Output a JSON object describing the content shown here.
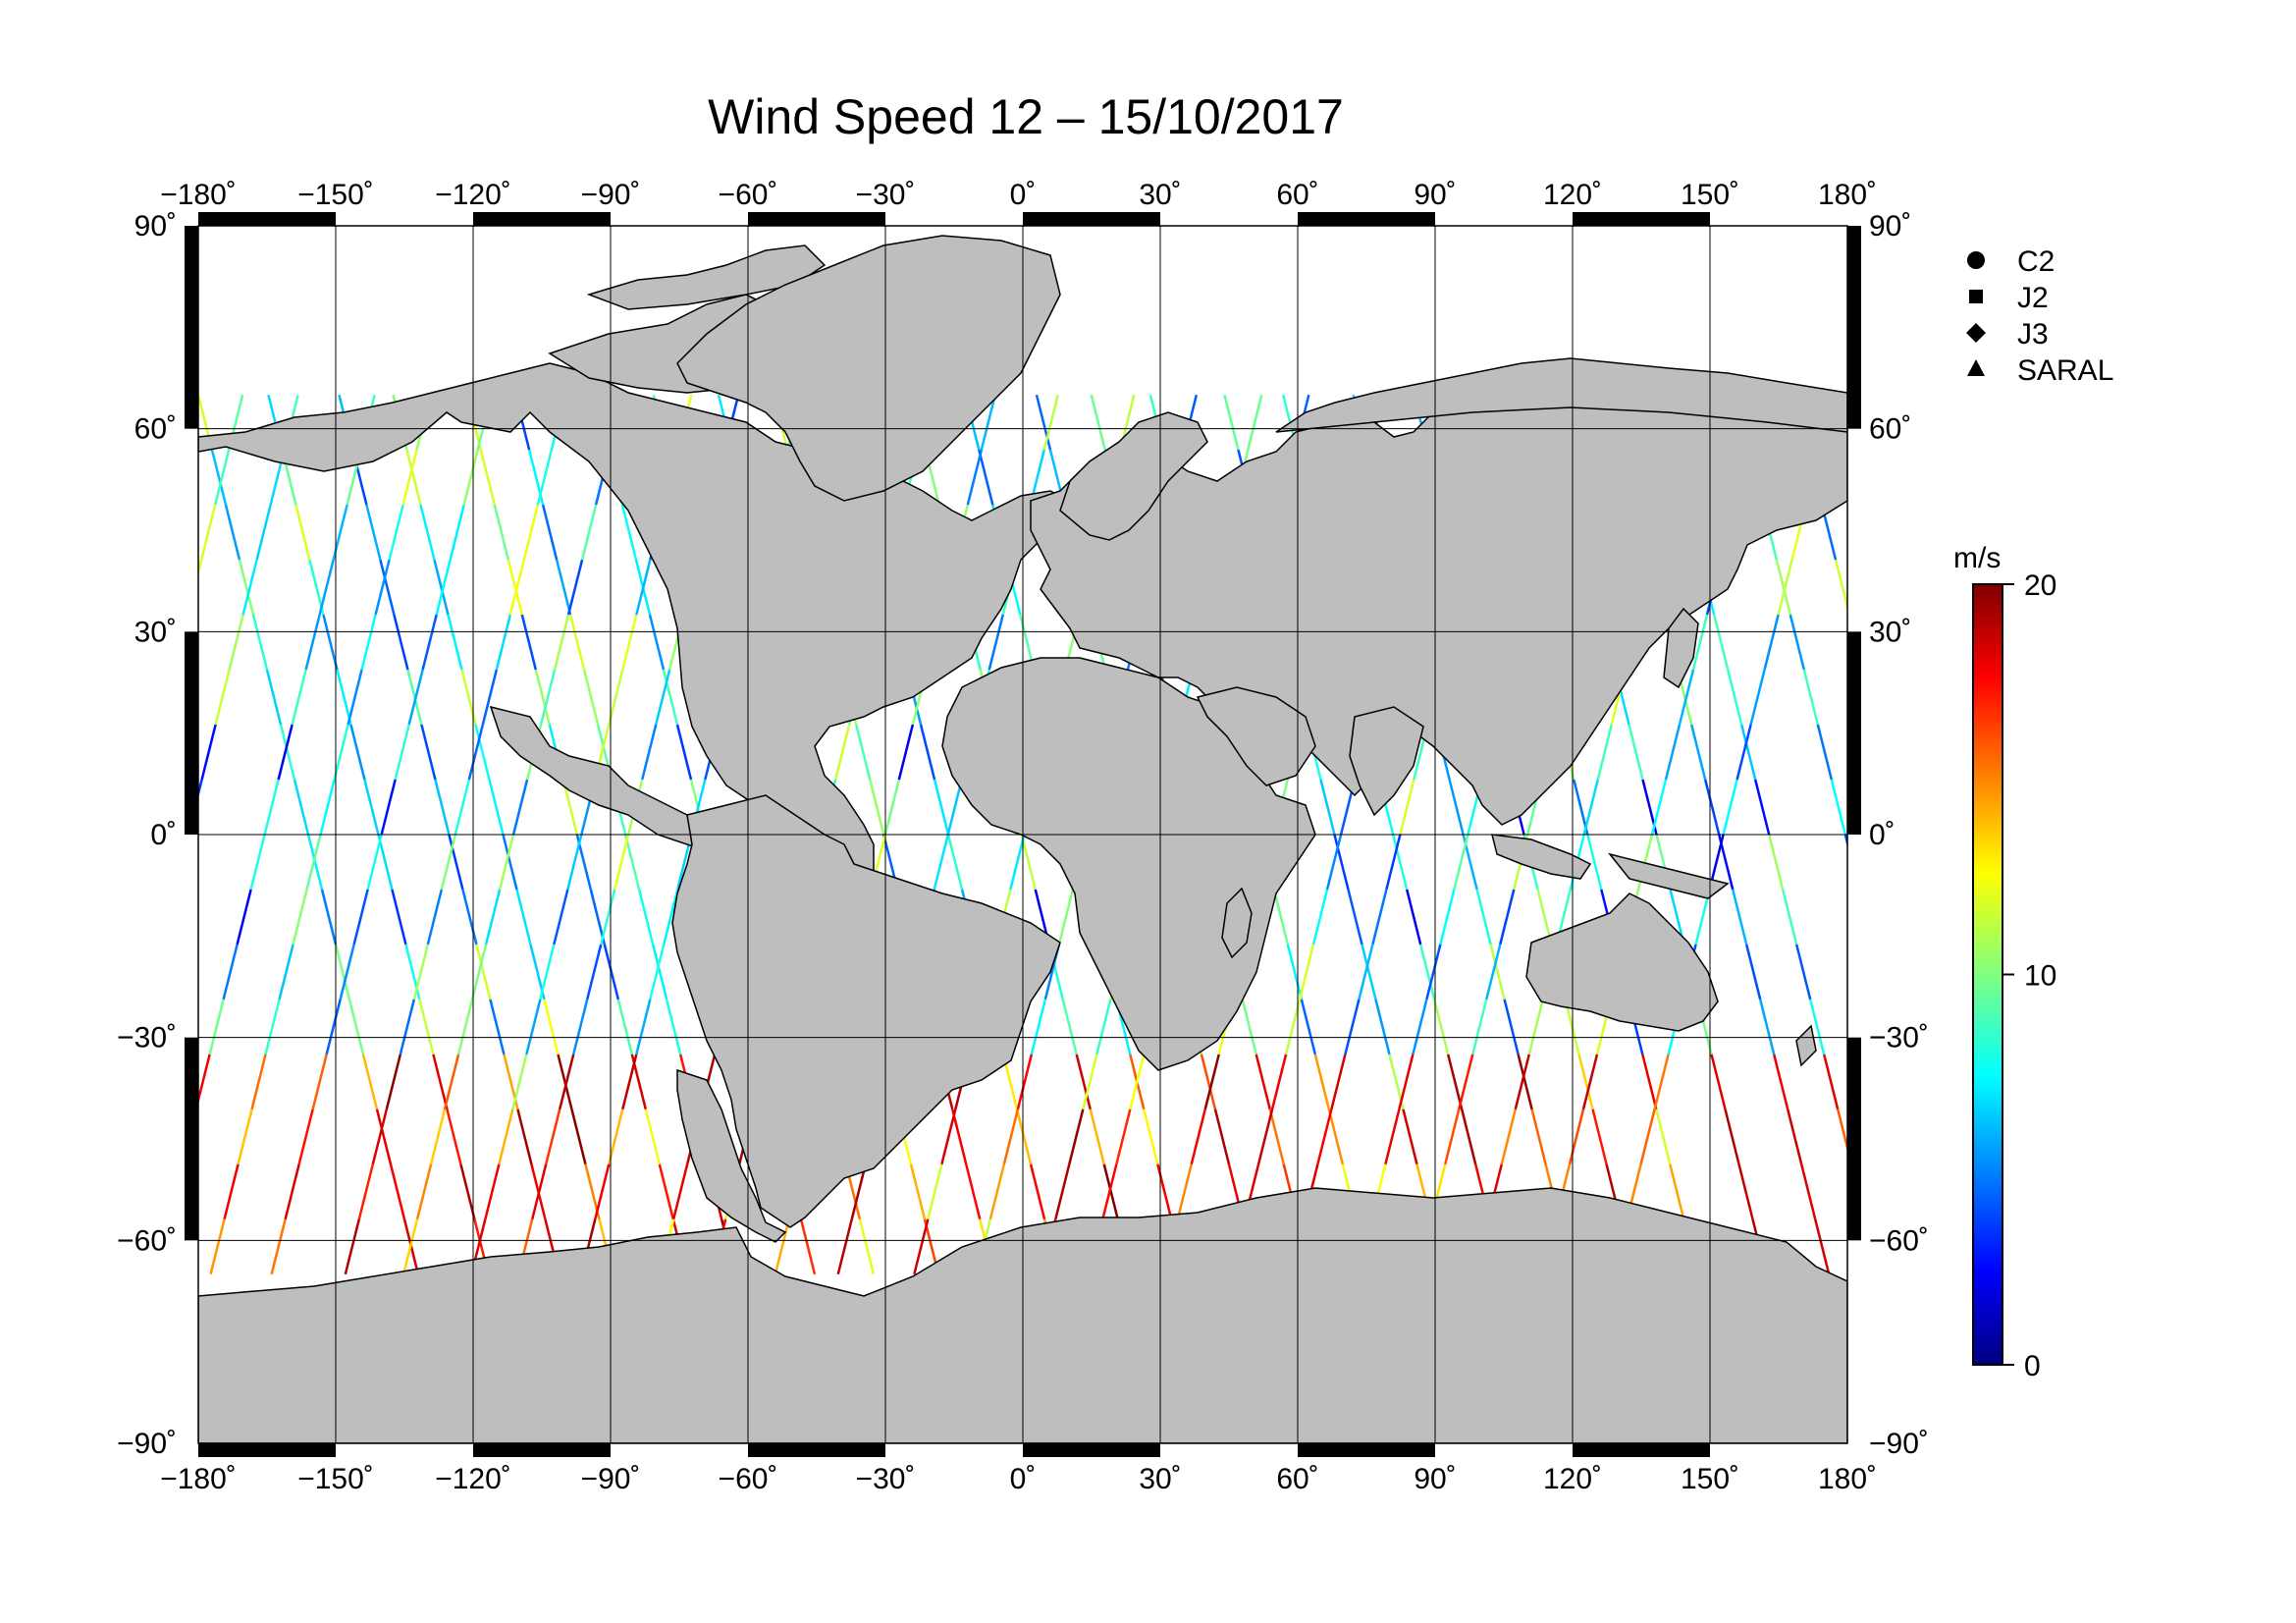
{
  "title": "Wind Speed 12 – 15/10/2017",
  "map": {
    "lon_ticks": [
      "−180˚",
      "−150˚",
      "−120˚",
      "−90˚",
      "−60˚",
      "−30˚",
      "0˚",
      "30˚",
      "60˚",
      "90˚",
      "120˚",
      "150˚",
      "180˚"
    ],
    "lat_ticks": [
      "90˚",
      "60˚",
      "30˚",
      "0˚",
      "−30˚",
      "−60˚",
      "−90˚"
    ],
    "land_color": "#bebebe",
    "ocean_color": "#ffffff"
  },
  "legend": [
    {
      "label": "C2",
      "symbol": "circle"
    },
    {
      "label": "J2",
      "symbol": "square"
    },
    {
      "label": "J3",
      "symbol": "diamond"
    },
    {
      "label": "SARAL",
      "symbol": "triangle"
    }
  ],
  "colorbar": {
    "unit": "m/s",
    "ticks": [
      "20",
      "10",
      "0"
    ],
    "min": 0,
    "max": 20,
    "colormap": [
      "#000080",
      "#0000ff",
      "#00ffff",
      "#ffff00",
      "#ff0000",
      "#800000"
    ]
  },
  "tracks": {
    "lat_limit": 65,
    "count": 52
  }
}
